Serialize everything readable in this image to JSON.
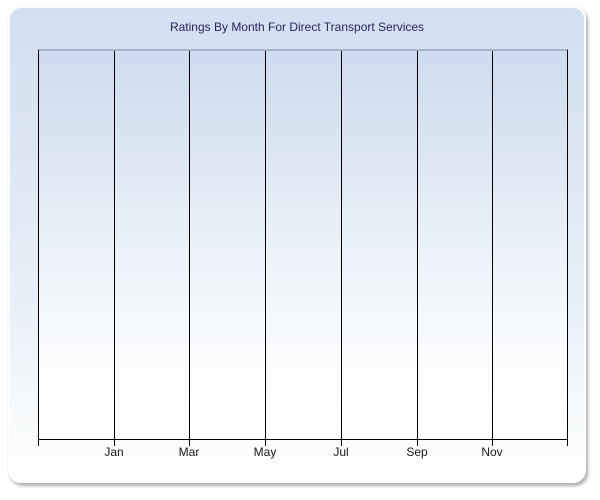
{
  "window": {
    "background_color": "#ffffff"
  },
  "panel": {
    "background_top_color": "#d3dff1",
    "background_bottom_color": "#fdfefe",
    "border_color": "#fdfdfd",
    "shadow_color": "#949494"
  },
  "chart_data": {
    "type": "line",
    "title": "Ratings By Month For Direct Transport Services",
    "title_color": "#25255e",
    "xlabel": "",
    "ylabel": "",
    "x_tick_labels": [
      "Jan",
      "Mar",
      "May",
      "Jul",
      "Sep",
      "Nov"
    ],
    "y_tick_labels": [],
    "series": [],
    "plot_is_empty": true,
    "legend": "none",
    "grid": "vertical",
    "gridline_color": "#000000",
    "axis_color": "#000000",
    "plot_top_border_color": "#a9b3c7",
    "plot_background_top_color": "#cddcef",
    "plot_background_bottom_color": "#ffffff",
    "x_tick_label_color": "#1a1a1a",
    "x_intervals": 7
  }
}
